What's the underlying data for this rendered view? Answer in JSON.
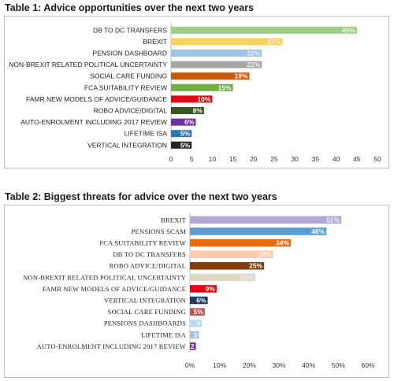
{
  "chart_data": [
    {
      "type": "bar",
      "orientation": "horizontal",
      "title": "Table 1: Advice opportunities over the next two years",
      "categories": [
        "DB TO DC TRANSFERS",
        "BREXIT",
        "PENSION DASHBOARD",
        "NON-BREXIT RELATED POLITICAL UNCERTAINTY",
        "SOCIAL CARE FUNDING",
        "FCA SUITABILITY REVIEW",
        "FAMR NEW MODELS OF ADVICE/GUIDANCE",
        "ROBO ADVICE/DIGITAL",
        "AUTO-ENROLMENT INCLUDING 2017 REVIEW",
        "LIFETIME ISA",
        "VERTICAL INTEGRATION"
      ],
      "values": [
        45,
        27,
        22,
        22,
        19,
        15,
        10,
        8,
        6,
        5,
        5
      ],
      "data_labels": [
        "45%",
        "27%",
        "22%",
        "22%",
        "19%",
        "15%",
        "10%",
        "8%",
        "6%",
        "5%",
        "5%"
      ],
      "colors": [
        "#9bd082",
        "#f7d35d",
        "#9dc3e6",
        "#a6a6a6",
        "#c55a11",
        "#70ad47",
        "#e30613",
        "#375623",
        "#7030a0",
        "#2e75b6",
        "#262626"
      ],
      "xlim": [
        0,
        50
      ],
      "xticks": [
        "0",
        "5",
        "10",
        "15",
        "20",
        "25",
        "30",
        "35",
        "40",
        "45",
        "50"
      ],
      "grid": false
    },
    {
      "type": "bar",
      "orientation": "horizontal",
      "title": "Table 2: Biggest threats for advice over the next two years",
      "categories": [
        "BREXIT",
        "PENSIONS SCAM",
        "FCA SUITABILITY REVIEW",
        "DB TO DC TRANSFERS",
        "ROBO ADVICE/DIGITAL",
        "NON-BREXIT RELATED POLITICAL UNCERTAINTY",
        "FAMR NEW MODELS OF ADVICE/GUIDANCE",
        "VERTICAL INTEGRATION",
        "SOCIAL CARE FUNDING",
        "PENSIONS DASHBOARDS",
        "LIFETIME ISA",
        "AUTO-ENROLMENT INCLUDING 2017 REVIEW"
      ],
      "values": [
        51,
        46,
        34,
        28,
        25,
        22,
        9,
        6,
        5,
        4,
        3,
        2
      ],
      "data_labels": [
        "51%",
        "46%",
        "34%",
        "28%",
        "25%",
        "22%",
        "9%",
        "6%",
        "5%",
        "4",
        "3",
        "2"
      ],
      "colors": [
        "#b4a7d6",
        "#5b9bd5",
        "#e46c0a",
        "#f8cbad",
        "#843c0c",
        "#ddd9c3",
        "#e30613",
        "#1f3864",
        "#c0504d",
        "#bdd7ee",
        "#9dc3e6",
        "#7030a0"
      ],
      "xlim": [
        0,
        60
      ],
      "xticks": [
        "0%",
        "10%",
        "20%",
        "30%",
        "40%",
        "50%",
        "60%"
      ],
      "grid": false
    }
  ]
}
